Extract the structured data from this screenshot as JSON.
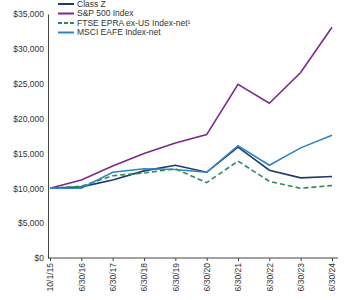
{
  "chart_data": {
    "type": "line",
    "categories": [
      "10/1/15",
      "6/30/16",
      "6/30/17",
      "6/30/18",
      "6/30/19",
      "6/30/20",
      "6/30/21",
      "6/30/22",
      "6/30/23",
      "6/30/24"
    ],
    "series": [
      {
        "name": "Class Z",
        "color": "#1f3a6e",
        "line_style": "solid",
        "values": [
          10000,
          10200,
          11200,
          12500,
          13300,
          12300,
          15900,
          12600,
          11500,
          11700
        ]
      },
      {
        "name": "S&P 500 Index",
        "color": "#7b2a8c",
        "line_style": "solid",
        "values": [
          10000,
          11200,
          13200,
          15000,
          16500,
          17700,
          24900,
          22200,
          26600,
          33100
        ]
      },
      {
        "name": "FTSE EPRA ex-US Index-net¹",
        "color": "#2e8b57",
        "line_style": "dashed",
        "values": [
          10000,
          10300,
          11800,
          12200,
          12800,
          10800,
          13900,
          11000,
          10000,
          10400
        ]
      },
      {
        "name": "MSCI EAFE Index-net",
        "color": "#2f86c5",
        "line_style": "solid",
        "values": [
          10000,
          10000,
          12300,
          12800,
          12700,
          12300,
          16100,
          13300,
          15800,
          17600
        ]
      }
    ],
    "ylim": [
      0,
      35000
    ],
    "yticks": [
      {
        "value": 0,
        "label": "$0"
      },
      {
        "value": 5000,
        "label": "$5,000"
      },
      {
        "value": 10000,
        "label": "$10,000"
      },
      {
        "value": 15000,
        "label": "$15,000"
      },
      {
        "value": 20000,
        "label": "$20,000"
      },
      {
        "value": 25000,
        "label": "$25,000"
      },
      {
        "value": 30000,
        "label": "$30,000"
      },
      {
        "value": 35000,
        "label": "$35,000"
      }
    ],
    "grid": false,
    "legend": "top-left"
  }
}
